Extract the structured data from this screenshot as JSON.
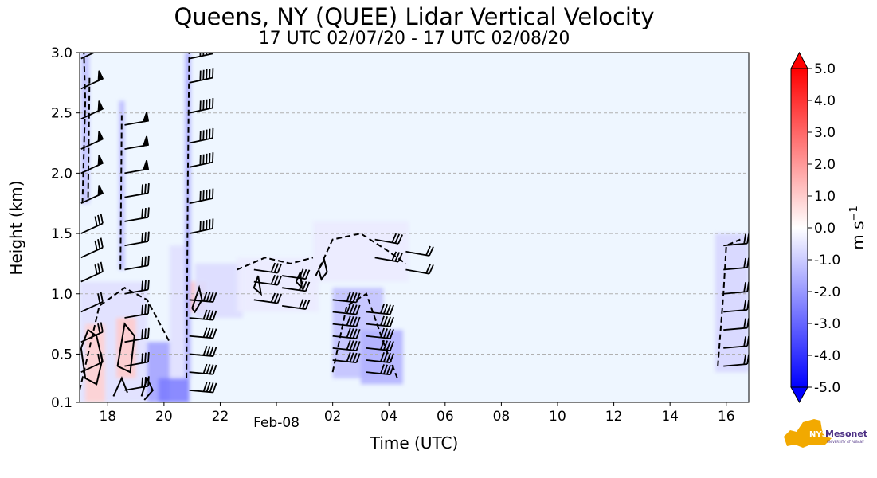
{
  "title": "Queens, NY (QUEE) Lidar Vertical Velocity",
  "subtitle": "17 UTC 02/07/20 - 17 UTC 02/08/20",
  "chart_data": {
    "type": "heatmap",
    "title": "Queens, NY (QUEE) Lidar Vertical Velocity",
    "subtitle": "17 UTC 02/07/20 - 17 UTC 02/08/20",
    "xlabel": "Time (UTC)",
    "ylabel": "Height (km)",
    "x_unit": "hours since 17 UTC 02/07/20",
    "xlim": [
      0,
      23.8
    ],
    "ylim": [
      0.1,
      3.0
    ],
    "grid": "horizontal dashed",
    "x_ticks": [
      {
        "x": 1,
        "label": "18"
      },
      {
        "x": 3,
        "label": "20"
      },
      {
        "x": 5,
        "label": "22"
      },
      {
        "x": 7,
        "label": "Feb-08"
      },
      {
        "x": 9,
        "label": "02"
      },
      {
        "x": 11,
        "label": "04"
      },
      {
        "x": 13,
        "label": "06"
      },
      {
        "x": 15,
        "label": "08"
      },
      {
        "x": 17,
        "label": "10"
      },
      {
        "x": 19,
        "label": "12"
      },
      {
        "x": 21,
        "label": "14"
      },
      {
        "x": 23,
        "label": "16"
      }
    ],
    "y_ticks": [
      {
        "y": 0.1,
        "label": "0.1"
      },
      {
        "y": 0.5,
        "label": "0.5"
      },
      {
        "y": 1.0,
        "label": "1.0"
      },
      {
        "y": 1.5,
        "label": "1.5"
      },
      {
        "y": 2.0,
        "label": "2.0"
      },
      {
        "y": 2.5,
        "label": "2.5"
      },
      {
        "y": 3.0,
        "label": "3.0"
      }
    ],
    "colorbar": {
      "label": "m s",
      "label_sup": "−1",
      "range": [
        -5.0,
        5.0
      ],
      "ticks": [
        "5.0",
        "4.0",
        "3.0",
        "2.0",
        "1.0",
        "0.0",
        "-1.0",
        "-2.0",
        "-3.0",
        "-4.0",
        "-5.0"
      ],
      "colors": {
        "positive": "#ff0000",
        "zero": "#ffffff",
        "negative": "#0000ff"
      }
    },
    "background_color": "#eef6ff",
    "data_regions": [
      {
        "x0": 0.05,
        "x1": 0.35,
        "y0": 1.75,
        "y1": 3.0,
        "v": -1.2
      },
      {
        "x0": 0.0,
        "x1": 2.4,
        "y0": 0.1,
        "y1": 1.1,
        "v": -0.6
      },
      {
        "x0": 0.2,
        "x1": 0.9,
        "y0": 0.1,
        "y1": 0.75,
        "v": 0.9
      },
      {
        "x0": 1.3,
        "x1": 2.0,
        "y0": 0.3,
        "y1": 0.8,
        "v": 1.0
      },
      {
        "x0": 1.4,
        "x1": 1.6,
        "y0": 1.2,
        "y1": 2.6,
        "v": -1.3
      },
      {
        "x0": 2.4,
        "x1": 3.2,
        "y0": 0.1,
        "y1": 0.6,
        "v": -1.8
      },
      {
        "x0": 2.8,
        "x1": 3.9,
        "y0": 0.1,
        "y1": 0.3,
        "v": -2.5
      },
      {
        "x0": 3.2,
        "x1": 3.9,
        "y0": 0.3,
        "y1": 1.4,
        "v": -0.6
      },
      {
        "x0": 3.75,
        "x1": 3.95,
        "y0": 0.3,
        "y1": 3.0,
        "v": -1.6
      },
      {
        "x0": 3.95,
        "x1": 4.5,
        "y0": 0.85,
        "y1": 1.1,
        "v": 1.1
      },
      {
        "x0": 4.1,
        "x1": 5.8,
        "y0": 0.8,
        "y1": 1.25,
        "v": -0.7
      },
      {
        "x0": 5.6,
        "x1": 8.5,
        "y0": 0.85,
        "y1": 1.3,
        "v": -0.4
      },
      {
        "x0": 8.3,
        "x1": 11.7,
        "y0": 1.1,
        "y1": 1.6,
        "v": -0.4
      },
      {
        "x0": 9.0,
        "x1": 10.8,
        "y0": 0.3,
        "y1": 1.05,
        "v": -1.2
      },
      {
        "x0": 10.0,
        "x1": 11.5,
        "y0": 0.25,
        "y1": 0.7,
        "v": -1.5
      },
      {
        "x0": 22.6,
        "x1": 23.8,
        "y0": 0.35,
        "y1": 1.5,
        "v": -0.8
      }
    ],
    "annotations": [
      "wind barbs",
      "velocity contours"
    ]
  },
  "logo": {
    "text": "NYS",
    "brand": "Mesonet",
    "sub": "UNIVERSITY AT ALBANY"
  }
}
